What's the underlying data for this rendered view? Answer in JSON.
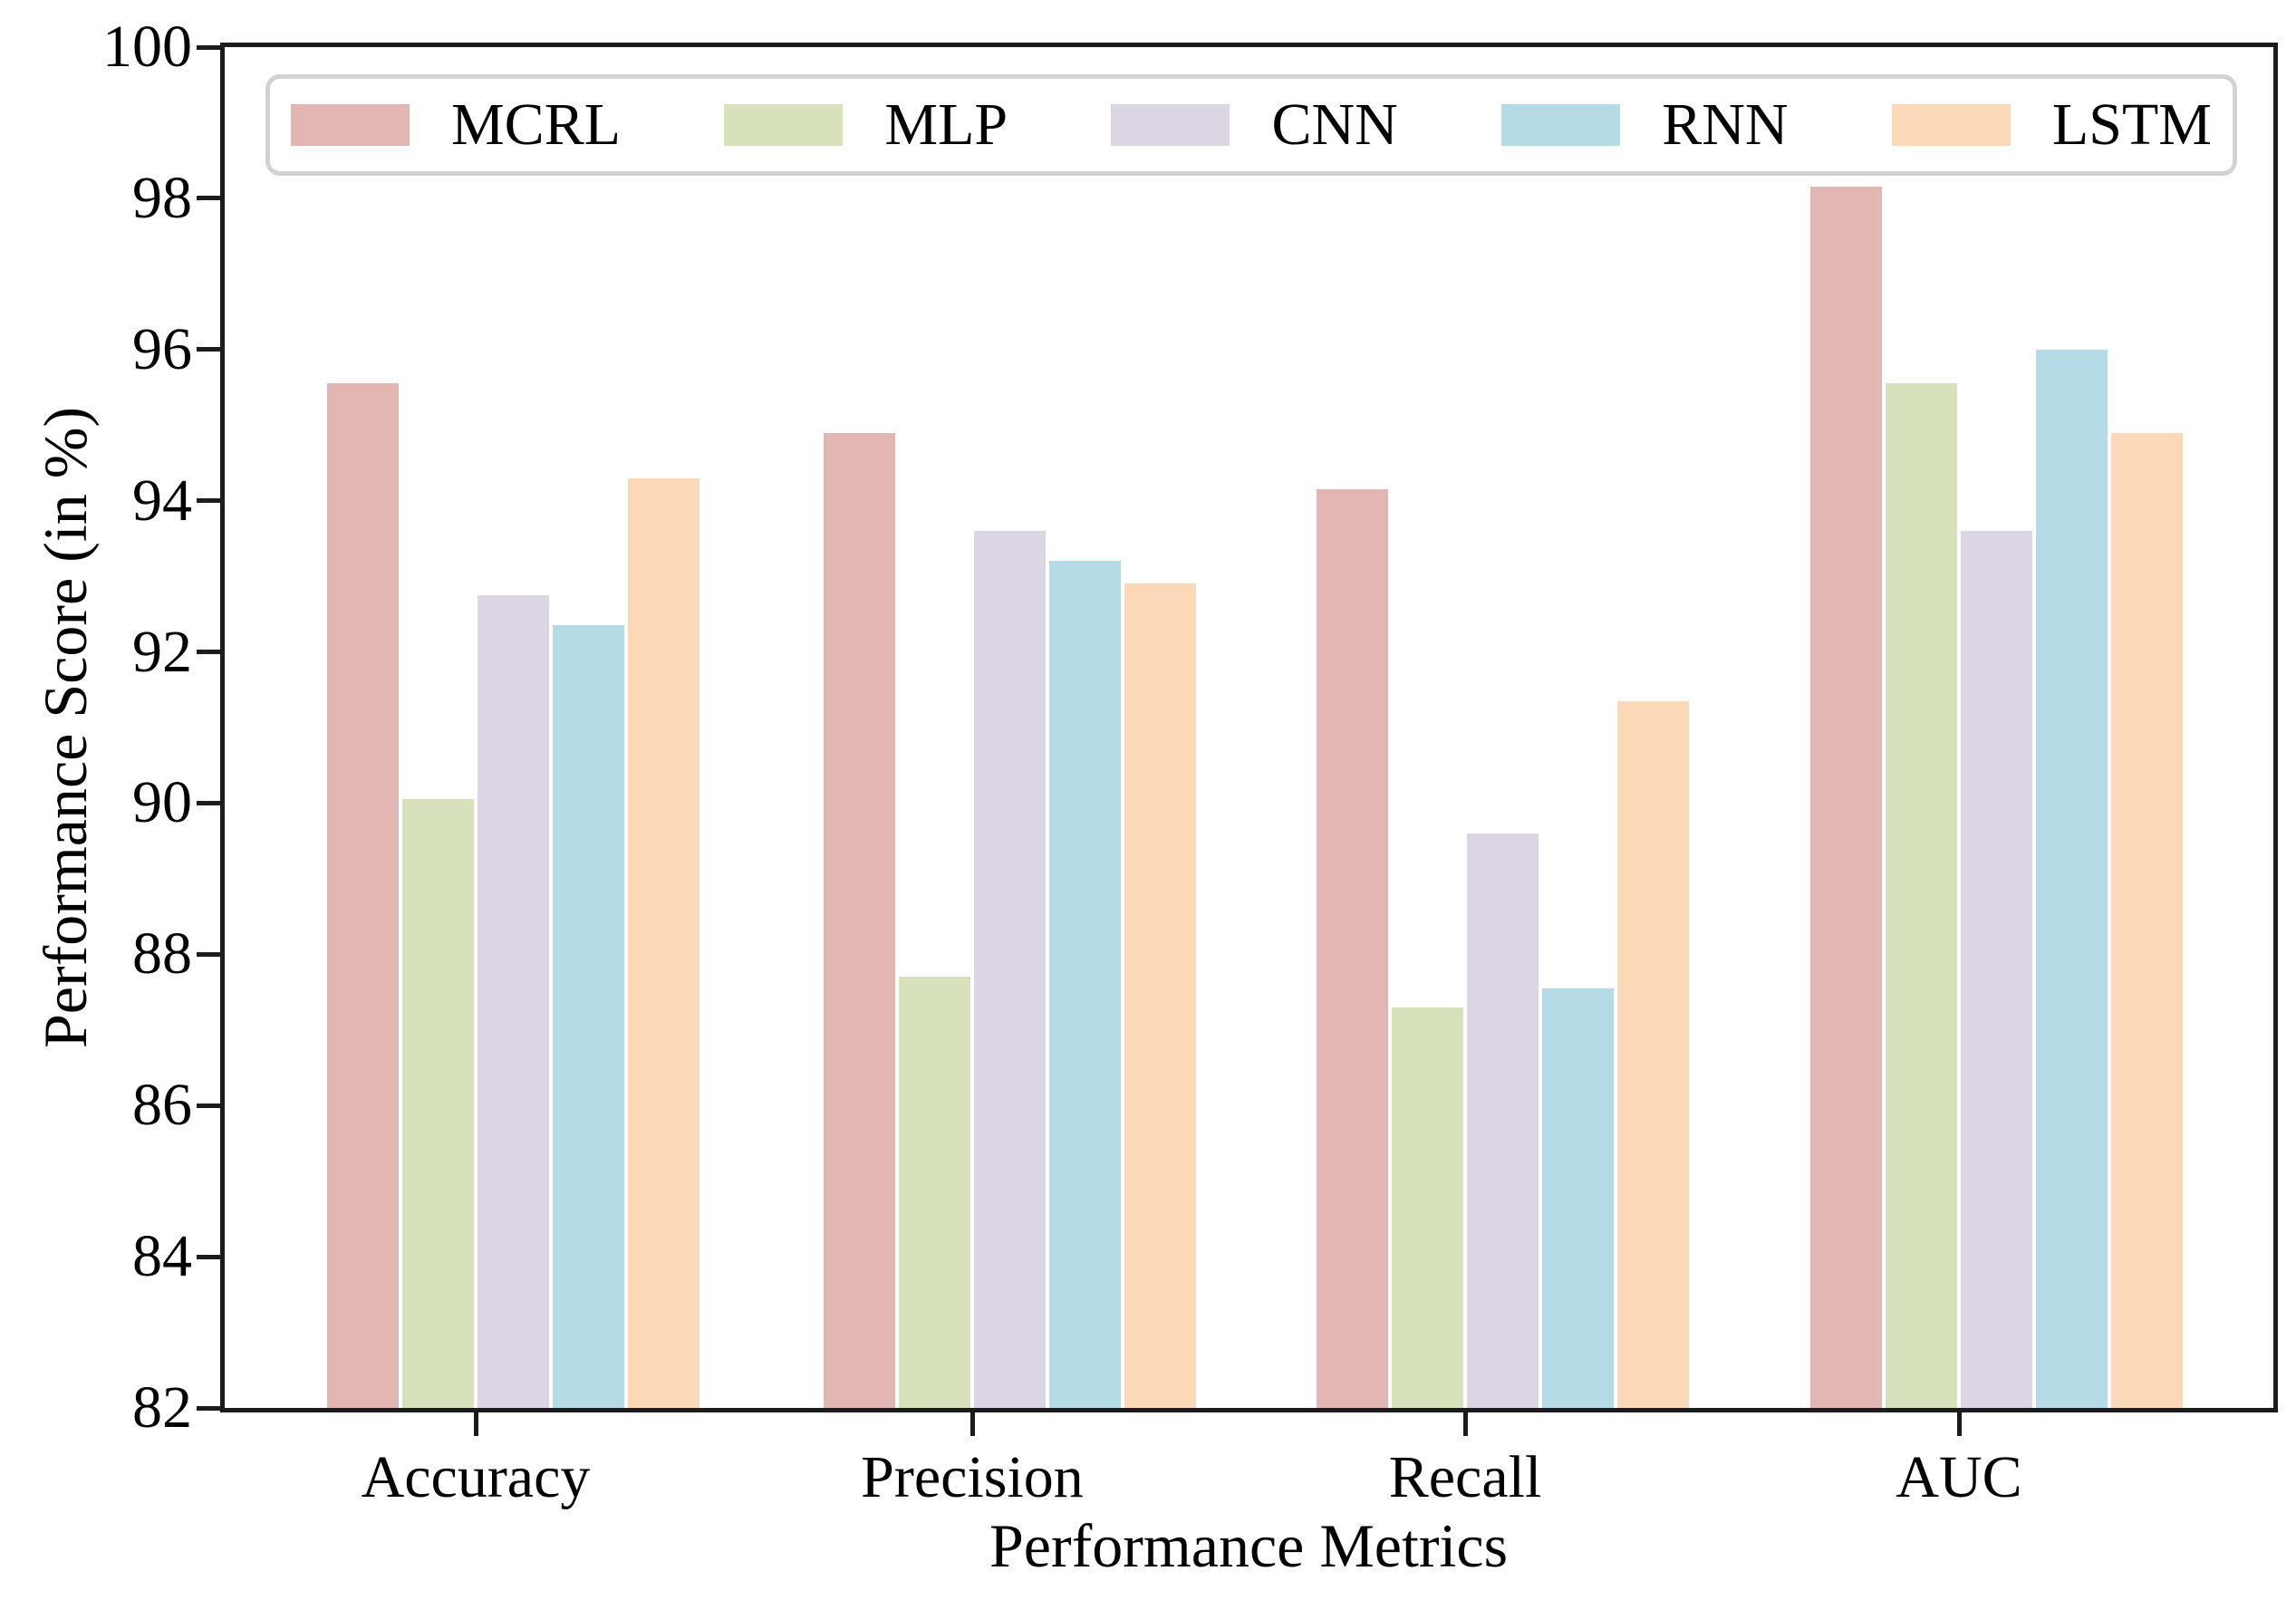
{
  "figure": {
    "background": "#ffffff",
    "axis_color": "#1c1c1c",
    "legend_border_color": "#d2d2d2"
  },
  "chart_data": {
    "type": "bar",
    "title": "",
    "xlabel": "Performance Metrics",
    "ylabel": "Performance Score (in %)",
    "categories": [
      "Accuracy",
      "Precision",
      "Recall",
      "AUC"
    ],
    "series": [
      {
        "name": "MCRL",
        "color": "#e2b6b2",
        "values": [
          95.55,
          94.9,
          94.15,
          98.15
        ]
      },
      {
        "name": "MLP",
        "color": "#d7e2bd",
        "values": [
          90.05,
          87.7,
          87.3,
          95.55
        ]
      },
      {
        "name": "CNN",
        "color": "#dcd6e4",
        "values": [
          92.75,
          93.6,
          89.6,
          93.6
        ]
      },
      {
        "name": "RNN",
        "color": "#b5dbe7",
        "values": [
          92.35,
          93.2,
          87.55,
          96.0
        ]
      },
      {
        "name": "LSTM",
        "color": "#fbd8b8",
        "values": [
          94.3,
          92.9,
          91.35,
          94.9
        ]
      }
    ],
    "ylim": [
      82,
      100
    ],
    "yticks": [
      82,
      84,
      86,
      88,
      90,
      92,
      94,
      96,
      98,
      100
    ],
    "legend_position": "upper-expand",
    "grid": false
  }
}
